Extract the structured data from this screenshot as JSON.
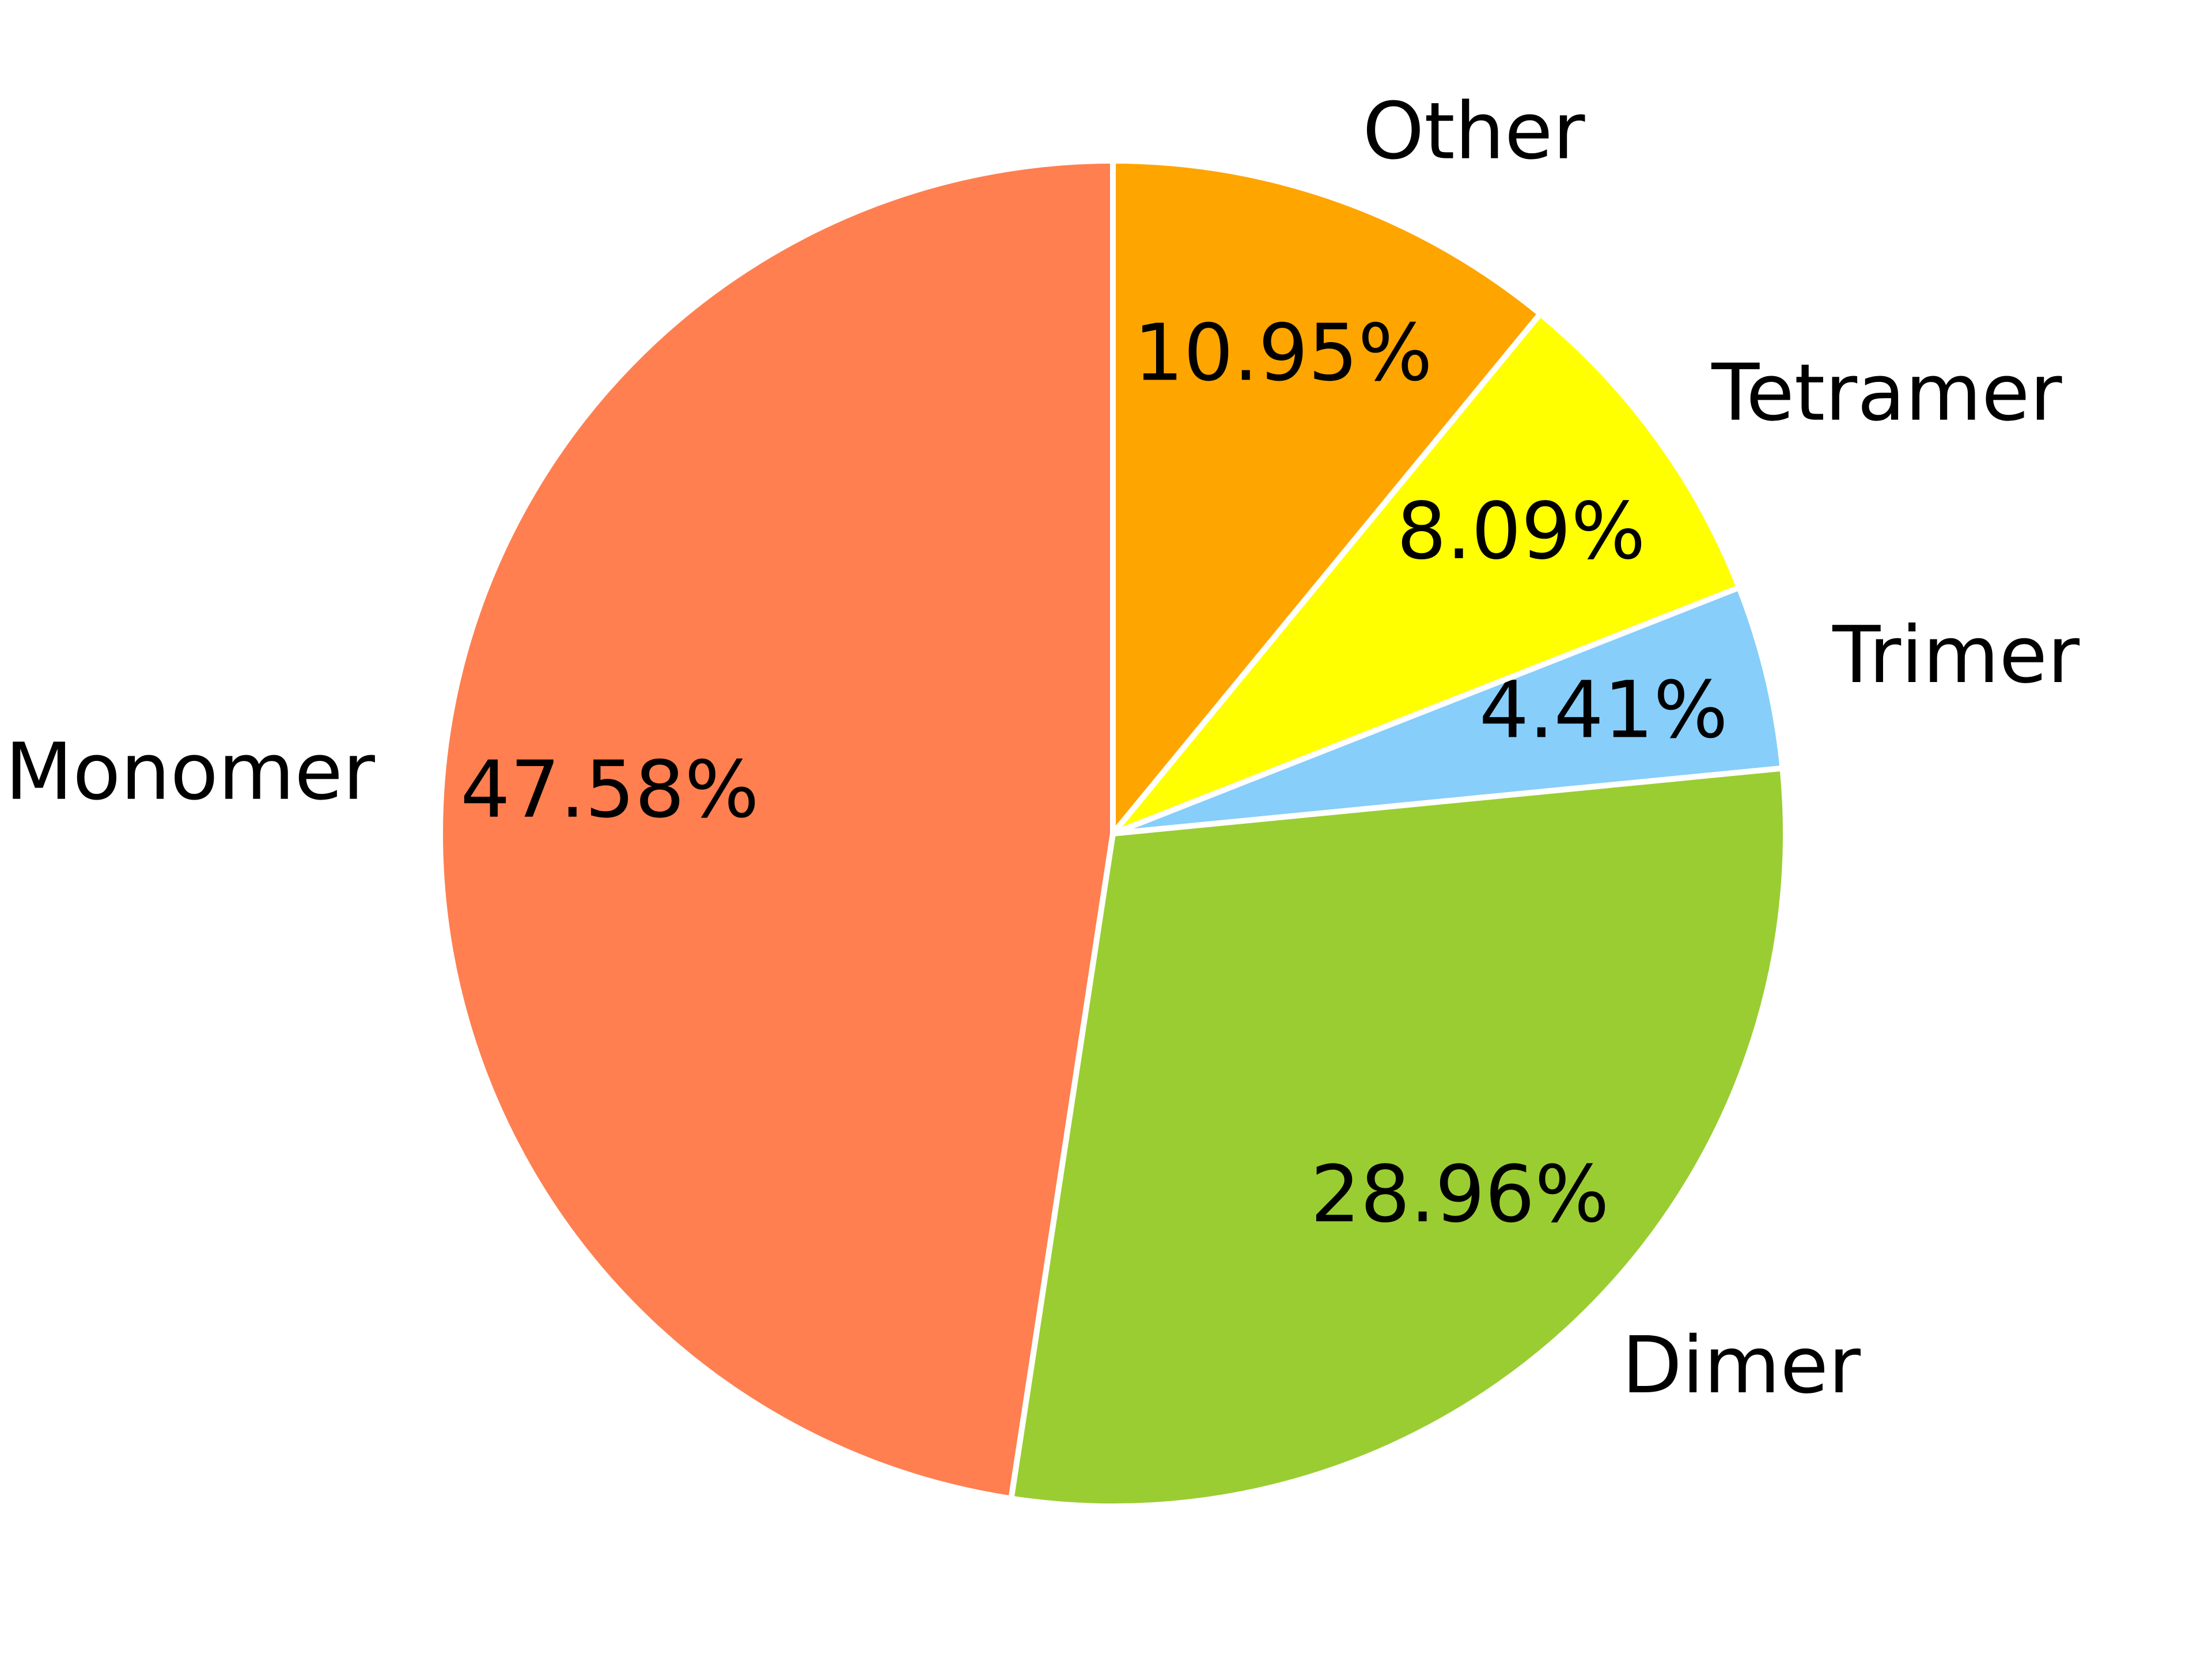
{
  "chart_data": {
    "type": "pie",
    "categories": [
      "Monomer",
      "Dimer",
      "Trimer",
      "Tetramer",
      "Other"
    ],
    "values": [
      47.58,
      28.96,
      4.41,
      8.09,
      10.95
    ],
    "value_labels": [
      "47.58%",
      "28.96%",
      "4.41%",
      "8.09%",
      "10.95%"
    ],
    "colors": [
      "#ff7f50",
      "#9acd32",
      "#87cefa",
      "#ffff00",
      "#ffa500"
    ],
    "start_angle": 90,
    "direction": "counterclockwise"
  }
}
